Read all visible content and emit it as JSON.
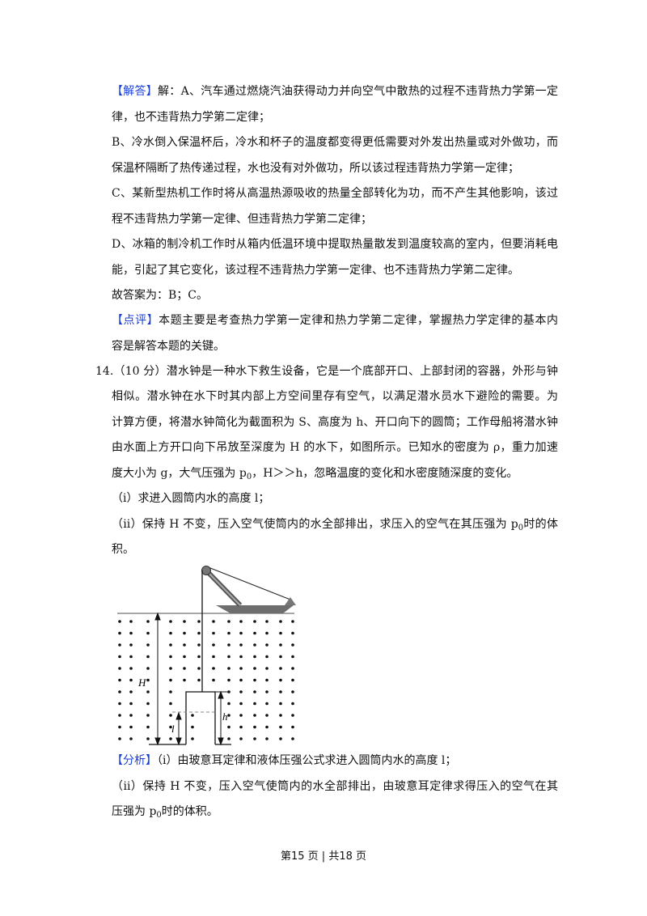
{
  "lines": [
    {
      "full": true,
      "segs": [
        {
          "t": "【解答】",
          "tag": true
        },
        {
          "t": "解：A、汽车通过燃烧汽油获得动力并向空气中散热的过程不违背热力学第一定"
        }
      ]
    },
    {
      "segs": [
        {
          "t": "律，也不违背热力学第二定律；"
        }
      ]
    },
    {
      "full": true,
      "segs": [
        {
          "t": "B、冷水倒入保温杯后，冷水和杯子的温度都变得更低需要对外发出热量或对外做功，而"
        }
      ]
    },
    {
      "segs": [
        {
          "t": "保温杯隔断了热传递过程，水也没有对外做功，所以该过程违背热力学第一定律；"
        }
      ]
    },
    {
      "full": true,
      "segs": [
        {
          "t": "C、某新型热机工作时将从高温热源吸收的热量全部转化为功，而不产生其他影响，该过"
        }
      ]
    },
    {
      "segs": [
        {
          "t": "程不违背热力学第一定律、但违背热力学第二定律；"
        }
      ]
    },
    {
      "full": true,
      "segs": [
        {
          "t": "D、冰箱的制冷机工作时从箱内低温环境中提取热量散发到温度较高的室内，但要消耗电"
        }
      ]
    },
    {
      "segs": [
        {
          "t": "能，引起了其它变化，该过程不违背热力学第一定律、也不违背热力学第二定律。"
        }
      ]
    },
    {
      "segs": [
        {
          "t": "故答案为：B；C。"
        }
      ]
    },
    {
      "full": true,
      "segs": [
        {
          "t": "【点评】",
          "tag": true
        },
        {
          "t": "本题主要是考查热力学第一定律和热力学第二定律，掌握热力学定律的基本内"
        }
      ]
    },
    {
      "segs": [
        {
          "t": "容是解答本题的关键。"
        }
      ]
    },
    {
      "full": true,
      "outdent": true,
      "segs": [
        {
          "t": "14.（10 分）潜水钟是一种水下救生设备，它是一个底部开口、上部封闭的容器，外形与钟"
        }
      ]
    },
    {
      "full": true,
      "segs": [
        {
          "t": "相似。潜水钟在水下时其内部上方空间里存有空气，以满足潜水员水下避险的需要。为"
        }
      ]
    },
    {
      "full": true,
      "segs": [
        {
          "t": "计算方便，将潜水钟简化为截面积为 S、高度为 h、开口向下的圆筒；工作母船将潜水钟"
        }
      ]
    },
    {
      "full": true,
      "segs": [
        {
          "t": "由水面上方开口向下吊放至深度为 H 的水下，如图所示。已知水的密度为 ρ，重力加速"
        }
      ]
    },
    {
      "segs": [
        {
          "t": "度大小为 g，大气压强为 p"
        },
        {
          "t": "0",
          "sub": true
        },
        {
          "t": "，H＞＞h，忽略温度的变化和水密度随深度的变化。"
        }
      ]
    },
    {
      "segs": [
        {
          "t": "（i）求进入圆筒内水的高度 l；"
        }
      ]
    },
    {
      "full": true,
      "segs": [
        {
          "t": "（ii）保持 H 不变，压入空气使筒内的水全部排出，求压入的空气在其压强为 p"
        },
        {
          "t": "0",
          "sub": true
        },
        {
          "t": "时的体"
        }
      ]
    },
    {
      "segs": [
        {
          "t": "积。"
        }
      ]
    },
    {
      "segs": [
        {
          "t": "【分析】",
          "tag": true
        },
        {
          "t": "（i）由玻意耳定律和液体压强公式求进入圆筒内水的高度 l；"
        }
      ]
    },
    {
      "full": true,
      "segs": [
        {
          "t": "（ii）保持 H 不变，压入空气使筒内的水全部排出，由玻意耳定律求得压入的空气在其"
        }
      ]
    },
    {
      "segs": [
        {
          "t": "压强为 p"
        },
        {
          "t": "0",
          "sub": true
        },
        {
          "t": "时的体积。"
        }
      ]
    }
  ],
  "diagram": {
    "label_H": "H",
    "label_h": "h",
    "label_l": "l"
  },
  "footer": "第15 页  |  共18 页",
  "colors": {
    "tag": "#1a3fd6"
  }
}
